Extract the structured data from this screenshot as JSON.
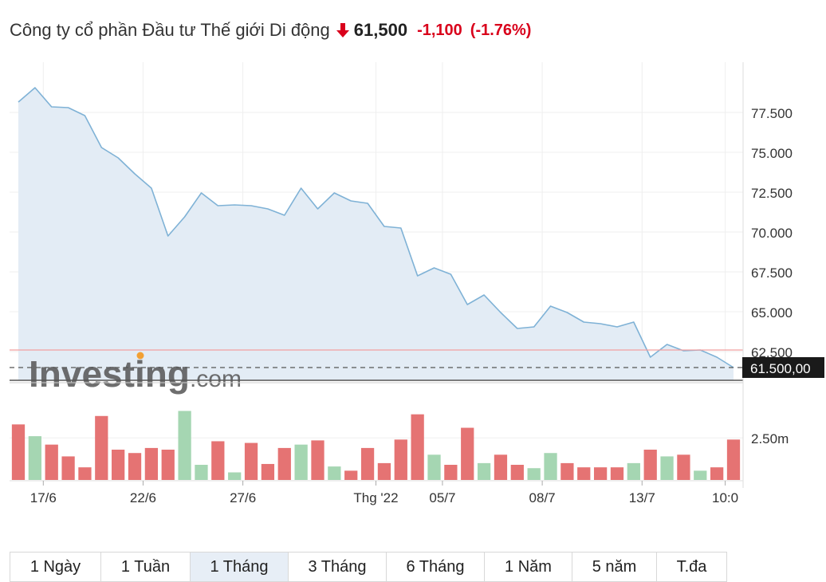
{
  "header": {
    "company": "Công ty cổ phần Đầu tư Thế giới Di động",
    "price": "61,500",
    "change": "-1,100",
    "change_pct": "(-1.76%)",
    "direction": "down",
    "down_color": "#d9001b"
  },
  "watermark": {
    "brand": "Investing",
    "suffix": ".com"
  },
  "chart_data": {
    "type": "area",
    "price_series": {
      "values": [
        78150,
        79050,
        77850,
        77800,
        77300,
        75300,
        74650,
        73650,
        72750,
        69750,
        70950,
        72450,
        71650,
        71700,
        71650,
        71450,
        71050,
        72750,
        71450,
        72450,
        71950,
        71800,
        70350,
        70250,
        67250,
        67750,
        67350,
        65450,
        66050,
        64950,
        63950,
        64050,
        65350,
        64950,
        64350,
        64250,
        64050,
        64350,
        62150,
        62950,
        62550,
        62600,
        62150,
        61500
      ],
      "color": "#7fb2d6"
    },
    "volume_series": {
      "values": [
        3.3,
        2.6,
        2.1,
        1.4,
        0.75,
        3.8,
        1.8,
        1.6,
        1.9,
        1.8,
        4.1,
        0.9,
        2.3,
        0.45,
        2.2,
        0.95,
        1.9,
        2.1,
        2.35,
        0.8,
        0.55,
        1.9,
        1.0,
        2.4,
        3.9,
        1.5,
        0.9,
        3.1,
        1.0,
        1.5,
        0.9,
        0.7,
        1.6,
        1.0,
        0.75,
        0.75,
        0.75,
        1.0,
        1.8,
        1.4,
        1.5,
        0.55,
        0.75,
        2.4
      ],
      "up_color": "#a5d6b2",
      "down_color": "#e57373"
    },
    "y_ticks": [
      "77.500",
      "75.000",
      "72.500",
      "70.000",
      "67.500",
      "65.000",
      "62.500"
    ],
    "y_tick_values": [
      77500,
      75000,
      72500,
      70000,
      67500,
      65000,
      62500
    ],
    "ylim": [
      60700,
      80650
    ],
    "volume_tick": "2.50m",
    "volume_tick_value": 2.5,
    "volume_max": 4.5,
    "x_ticks": [
      "17/6",
      "22/6",
      "27/6",
      "Thg '22",
      "05/7",
      "08/7",
      "13/7",
      "10:0"
    ],
    "x_tick_index": [
      1.5,
      7.5,
      13.5,
      21.5,
      25.5,
      31.5,
      37.5,
      42.5
    ],
    "last_price_label": "61.500,00",
    "last_price": 61500,
    "previous_close": 62600,
    "previous_close_color": "#f2a0a0"
  },
  "ranges": [
    {
      "label": "1 Ngày",
      "active": false
    },
    {
      "label": "1 Tuần",
      "active": false
    },
    {
      "label": "1 Tháng",
      "active": true
    },
    {
      "label": "3 Tháng",
      "active": false
    },
    {
      "label": "6 Tháng",
      "active": false
    },
    {
      "label": "1 Năm",
      "active": false
    },
    {
      "label": "5 năm",
      "active": false
    },
    {
      "label": "T.đa",
      "active": false
    }
  ]
}
